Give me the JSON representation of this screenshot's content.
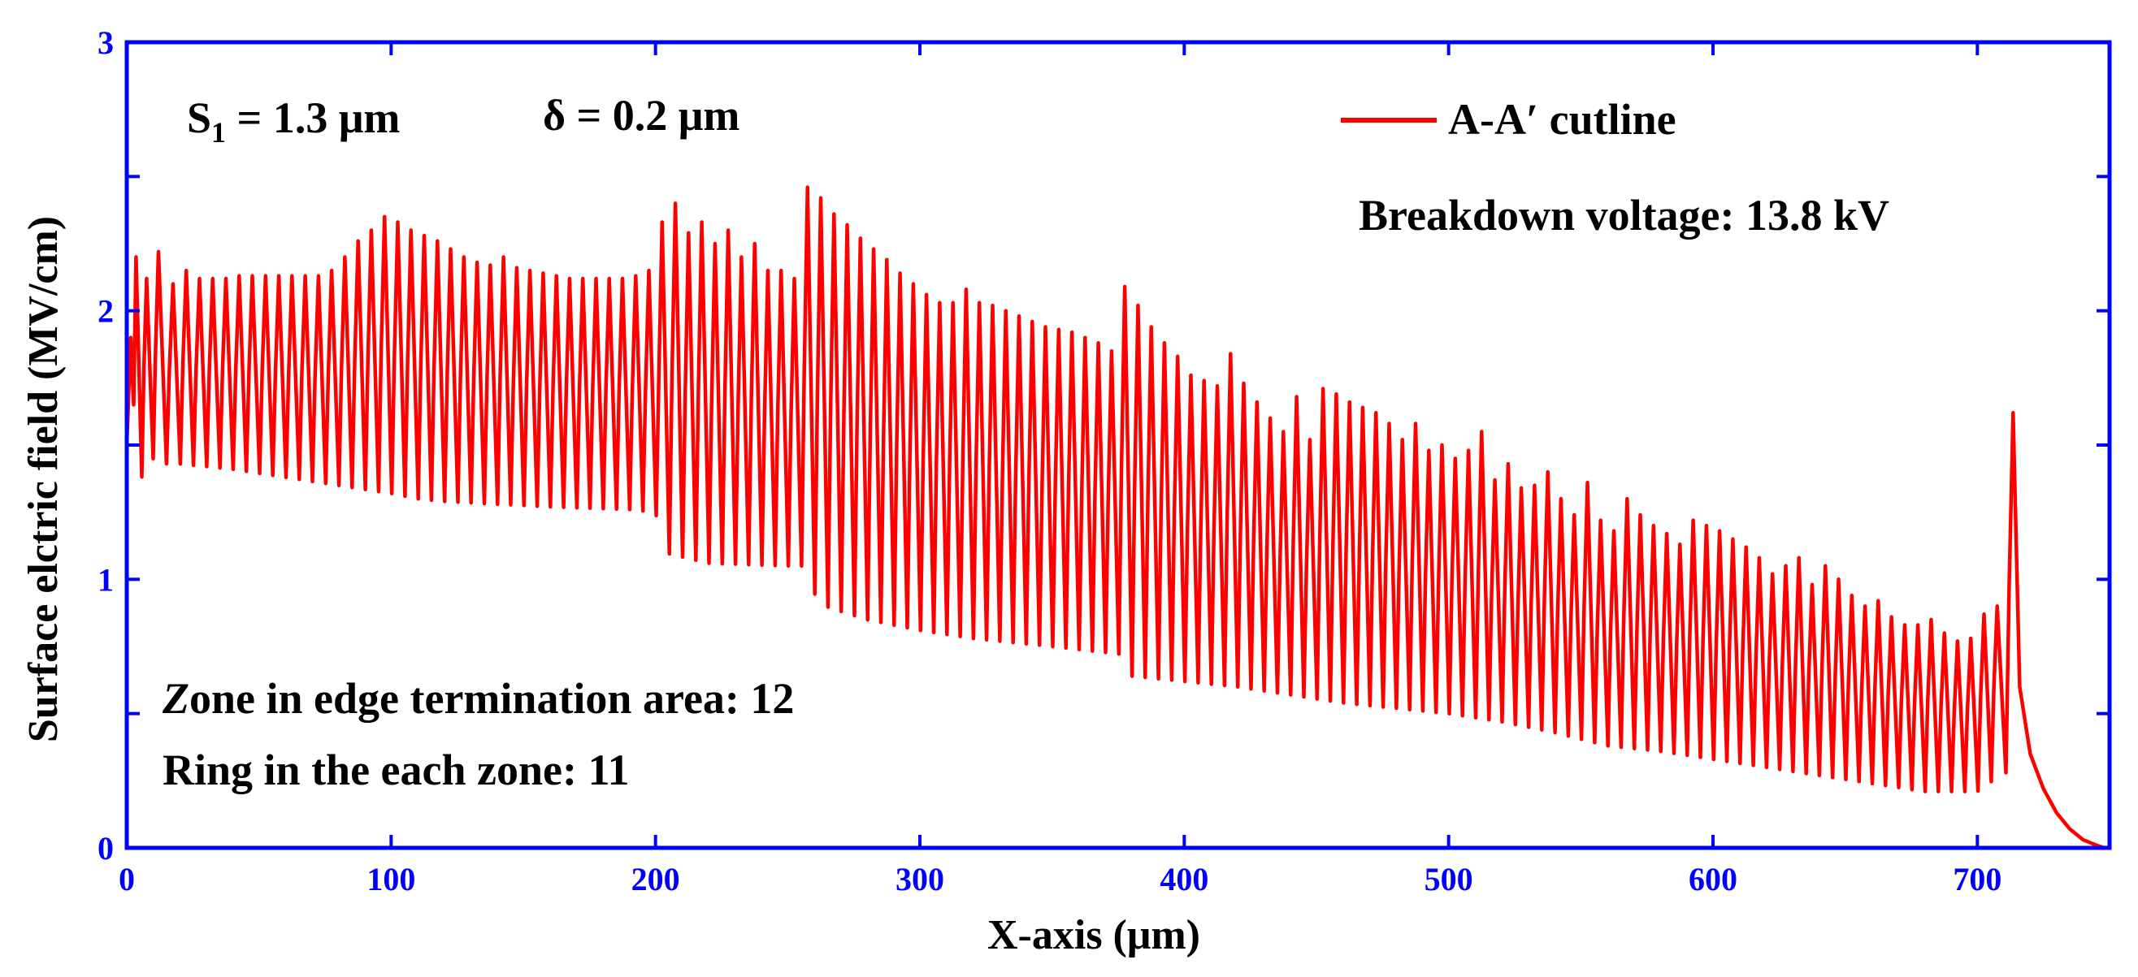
{
  "chart_data": {
    "type": "line",
    "title": "",
    "xlabel": "X-axis (μm)",
    "ylabel": "Surface elctric field (MV/cm)",
    "xlim": [
      0,
      750
    ],
    "ylim": [
      0,
      3
    ],
    "x_ticks": [
      "0",
      "100",
      "200",
      "300",
      "400",
      "500",
      "600",
      "700"
    ],
    "y_ticks": [
      "0",
      "1",
      "2",
      "3"
    ],
    "grid": false,
    "legend": {
      "position": "top-right",
      "entries": [
        "A-A′ cutline"
      ]
    },
    "colors": {
      "series": "#ff0000",
      "axis": "#0000ff",
      "text": "#000000"
    },
    "annotations": {
      "s1_symbol": "S",
      "s1_subscript": "1",
      "s1_value": " = 1.3 μm",
      "delta": "δ = 0.2 μm",
      "breakdown": "Breakdown voltage: 13.8 kV",
      "zone_italic": "Z",
      "zone_rest": "one in edge termination area: 12",
      "ring": "Ring in the each zone: 11"
    },
    "series": [
      {
        "name": "A-A′ cutline",
        "description": "Oscillating surface field; peaks and troughs of each ring listed in data units",
        "ring_peaks": [
          [
            1.5,
            1.9
          ],
          [
            3.5,
            2.2
          ],
          [
            7.5,
            2.12
          ],
          [
            12,
            2.22
          ],
          [
            17.5,
            2.1
          ],
          [
            22.5,
            2.15
          ],
          [
            27.5,
            2.12
          ],
          [
            32.5,
            2.12
          ],
          [
            37.5,
            2.12
          ],
          [
            42.5,
            2.13
          ],
          [
            47.5,
            2.13
          ],
          [
            52.5,
            2.13
          ],
          [
            57.5,
            2.13
          ],
          [
            62.5,
            2.13
          ],
          [
            67.5,
            2.13
          ],
          [
            72.5,
            2.13
          ],
          [
            77.5,
            2.15
          ],
          [
            82.5,
            2.2
          ],
          [
            87.5,
            2.26
          ],
          [
            92.5,
            2.3
          ],
          [
            97.5,
            2.35
          ],
          [
            102.5,
            2.33
          ],
          [
            107.5,
            2.3
          ],
          [
            112.5,
            2.28
          ],
          [
            117.5,
            2.26
          ],
          [
            122.5,
            2.23
          ],
          [
            127.5,
            2.2
          ],
          [
            132.5,
            2.18
          ],
          [
            137.5,
            2.17
          ],
          [
            142.5,
            2.2
          ],
          [
            147.5,
            2.16
          ],
          [
            152.5,
            2.15
          ],
          [
            157.5,
            2.14
          ],
          [
            162.5,
            2.13
          ],
          [
            167.5,
            2.12
          ],
          [
            172.5,
            2.12
          ],
          [
            177.5,
            2.12
          ],
          [
            182.5,
            2.12
          ],
          [
            187.5,
            2.12
          ],
          [
            192.5,
            2.13
          ],
          [
            197.5,
            2.15
          ],
          [
            202.5,
            2.33
          ],
          [
            207.5,
            2.4
          ],
          [
            212.5,
            2.29
          ],
          [
            217.5,
            2.33
          ],
          [
            222.5,
            2.25
          ],
          [
            227.5,
            2.3
          ],
          [
            232.5,
            2.2
          ],
          [
            237.5,
            2.25
          ],
          [
            242.5,
            2.15
          ],
          [
            247.5,
            2.15
          ],
          [
            252.5,
            2.12
          ],
          [
            257.5,
            2.46
          ],
          [
            262.5,
            2.42
          ],
          [
            267.5,
            2.36
          ],
          [
            272.5,
            2.32
          ],
          [
            277.5,
            2.27
          ],
          [
            282.5,
            2.23
          ],
          [
            287.5,
            2.19
          ],
          [
            292.5,
            2.14
          ],
          [
            297.5,
            2.1
          ],
          [
            302.5,
            2.06
          ],
          [
            307.5,
            2.03
          ],
          [
            312.5,
            2.03
          ],
          [
            317.5,
            2.08
          ],
          [
            322.5,
            2.03
          ],
          [
            327.5,
            2.02
          ],
          [
            332.5,
            2.0
          ],
          [
            337.5,
            1.98
          ],
          [
            342.5,
            1.96
          ],
          [
            347.5,
            1.94
          ],
          [
            352.5,
            1.93
          ],
          [
            357.5,
            1.92
          ],
          [
            362.5,
            1.9
          ],
          [
            367.5,
            1.88
          ],
          [
            372.5,
            1.85
          ],
          [
            377.5,
            2.09
          ],
          [
            382.5,
            2.02
          ],
          [
            387.5,
            1.94
          ],
          [
            392.5,
            1.88
          ],
          [
            397.5,
            1.83
          ],
          [
            402.5,
            1.76
          ],
          [
            407.5,
            1.74
          ],
          [
            412.5,
            1.72
          ],
          [
            417.5,
            1.84
          ],
          [
            422.5,
            1.73
          ],
          [
            427.5,
            1.66
          ],
          [
            432.5,
            1.6
          ],
          [
            437.5,
            1.55
          ],
          [
            442.5,
            1.68
          ],
          [
            447.5,
            1.52
          ],
          [
            452.5,
            1.71
          ],
          [
            457.5,
            1.69
          ],
          [
            462.5,
            1.66
          ],
          [
            467.5,
            1.64
          ],
          [
            472.5,
            1.62
          ],
          [
            477.5,
            1.58
          ],
          [
            482.5,
            1.52
          ],
          [
            487.5,
            1.58
          ],
          [
            492.5,
            1.48
          ],
          [
            497.5,
            1.5
          ],
          [
            502.5,
            1.45
          ],
          [
            507.5,
            1.48
          ],
          [
            512.5,
            1.55
          ],
          [
            517.5,
            1.37
          ],
          [
            522.5,
            1.43
          ],
          [
            527.5,
            1.34
          ],
          [
            532.5,
            1.35
          ],
          [
            537.5,
            1.4
          ],
          [
            542.5,
            1.3
          ],
          [
            547.5,
            1.24
          ],
          [
            552.5,
            1.36
          ],
          [
            557.5,
            1.22
          ],
          [
            562.5,
            1.18
          ],
          [
            567.5,
            1.3
          ],
          [
            572.5,
            1.24
          ],
          [
            577.5,
            1.2
          ],
          [
            582.5,
            1.17
          ],
          [
            587.5,
            1.13
          ],
          [
            592.5,
            1.22
          ],
          [
            597.5,
            1.2
          ],
          [
            602.5,
            1.18
          ],
          [
            607.5,
            1.15
          ],
          [
            612.5,
            1.12
          ],
          [
            617.5,
            1.08
          ],
          [
            622.5,
            1.02
          ],
          [
            627.5,
            1.05
          ],
          [
            632.5,
            1.08
          ],
          [
            637.5,
            0.98
          ],
          [
            642.5,
            1.05
          ],
          [
            647.5,
            1.0
          ],
          [
            652.5,
            0.94
          ],
          [
            657.5,
            0.9
          ],
          [
            662.5,
            0.92
          ],
          [
            667.5,
            0.86
          ],
          [
            672.5,
            0.83
          ],
          [
            677.5,
            0.83
          ],
          [
            682.5,
            0.85
          ],
          [
            687.5,
            0.8
          ],
          [
            692.5,
            0.77
          ],
          [
            697.5,
            0.78
          ],
          [
            702.5,
            0.87
          ],
          [
            707.5,
            0.9
          ],
          [
            713.5,
            1.62
          ]
        ],
        "troughs": [
          [
            0,
            1.5
          ],
          [
            2,
            1.72
          ],
          [
            5,
            1.37
          ],
          [
            10,
            1.45
          ],
          [
            15,
            1.43
          ],
          [
            20,
            1.43
          ],
          [
            40,
            1.41
          ],
          [
            60,
            1.38
          ],
          [
            80,
            1.35
          ],
          [
            100,
            1.32
          ],
          [
            110,
            1.3
          ],
          [
            120,
            1.29
          ],
          [
            140,
            1.28
          ],
          [
            160,
            1.27
          ],
          [
            190,
            1.26
          ],
          [
            200,
            1.25
          ],
          [
            203,
            1.1
          ],
          [
            220,
            1.06
          ],
          [
            250,
            1.05
          ],
          [
            258,
            1.05
          ],
          [
            261,
            0.91
          ],
          [
            280,
            0.85
          ],
          [
            300,
            0.81
          ],
          [
            320,
            0.78
          ],
          [
            350,
            0.75
          ],
          [
            377,
            0.72
          ],
          [
            380,
            0.64
          ],
          [
            400,
            0.62
          ],
          [
            420,
            0.6
          ],
          [
            440,
            0.57
          ],
          [
            460,
            0.54
          ],
          [
            480,
            0.52
          ],
          [
            500,
            0.5
          ],
          [
            520,
            0.47
          ],
          [
            540,
            0.43
          ],
          [
            560,
            0.38
          ],
          [
            580,
            0.36
          ],
          [
            600,
            0.33
          ],
          [
            620,
            0.3
          ],
          [
            640,
            0.27
          ],
          [
            660,
            0.24
          ],
          [
            680,
            0.21
          ],
          [
            700,
            0.21
          ],
          [
            710,
            0.28
          ]
        ],
        "tail": [
          [
            713.5,
            1.62
          ],
          [
            716,
            0.6
          ],
          [
            720,
            0.35
          ],
          [
            725,
            0.22
          ],
          [
            730,
            0.13
          ],
          [
            735,
            0.07
          ],
          [
            740,
            0.03
          ],
          [
            745,
            0.01
          ],
          [
            748,
            0.0
          ]
        ]
      }
    ]
  }
}
